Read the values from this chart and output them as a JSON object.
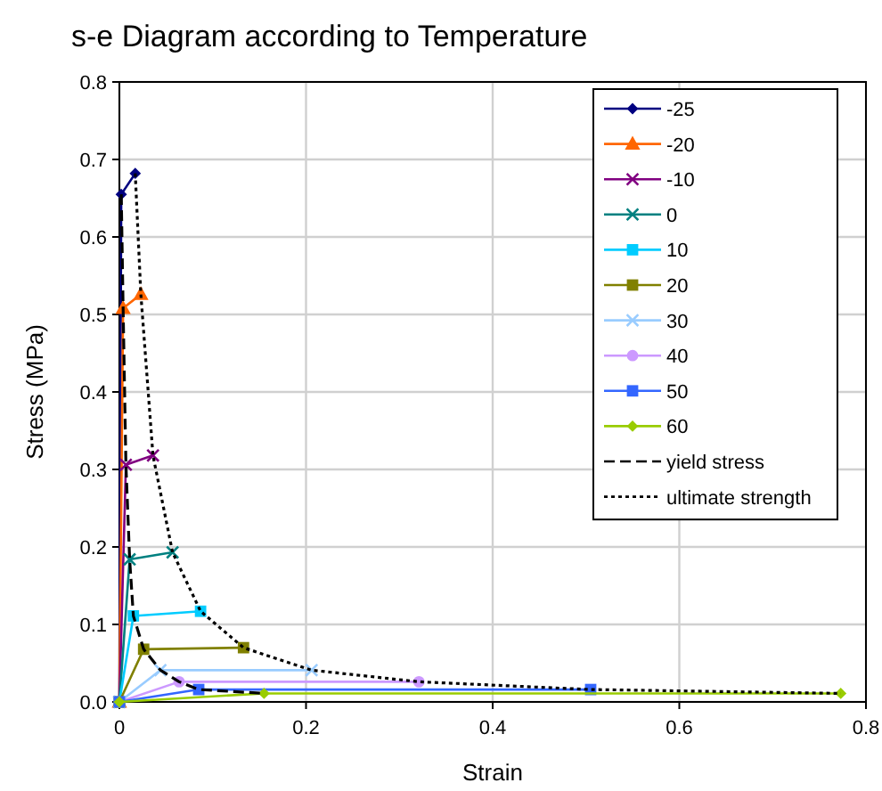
{
  "chart_data": {
    "type": "line",
    "title": "s-e Diagram according to Temperature",
    "xlabel": "Strain",
    "ylabel": "Stress (MPa)",
    "xlim": [
      0,
      0.8
    ],
    "xticks": [
      0,
      0.2,
      0.4,
      0.6,
      0.8
    ],
    "ylim": [
      0,
      0.8
    ],
    "yticks": [
      {
        "value": 0,
        "label": "0.0"
      },
      0.1,
      0.2,
      0.3,
      0.4,
      0.5,
      0.6,
      0.7,
      0.8
    ],
    "grid": true,
    "legend": "top right",
    "series": [
      {
        "name": "-25",
        "color": "#000080",
        "marker": "diamond",
        "x": [
          0,
          0.002,
          0.017
        ],
        "values": [
          0,
          0.655,
          0.682
        ]
      },
      {
        "name": "-20",
        "color": "#ff6600",
        "marker": "triangle",
        "x": [
          0,
          0.004,
          0.023
        ],
        "values": [
          0,
          0.508,
          0.526
        ]
      },
      {
        "name": "-10",
        "color": "#800080",
        "marker": "cross",
        "x": [
          0,
          0.007,
          0.036
        ],
        "values": [
          0,
          0.306,
          0.318
        ]
      },
      {
        "name": "0",
        "color": "#008080",
        "marker": "cross",
        "x": [
          0,
          0.011,
          0.057
        ],
        "values": [
          0,
          0.184,
          0.193
        ]
      },
      {
        "name": "10",
        "color": "#00ccff",
        "marker": "square",
        "x": [
          0,
          0.015,
          0.087
        ],
        "values": [
          0,
          0.111,
          0.117
        ]
      },
      {
        "name": "20",
        "color": "#808000",
        "marker": "square",
        "x": [
          0,
          0.026,
          0.133
        ],
        "values": [
          0,
          0.068,
          0.07
        ]
      },
      {
        "name": "30",
        "color": "#99ccff",
        "marker": "cross",
        "x": [
          0,
          0.044,
          0.206
        ],
        "values": [
          0,
          0.041,
          0.041
        ]
      },
      {
        "name": "40",
        "color": "#cc99ff",
        "marker": "circle",
        "x": [
          0,
          0.064,
          0.321
        ],
        "values": [
          0,
          0.026,
          0.026
        ]
      },
      {
        "name": "50",
        "color": "#3366ff",
        "marker": "square",
        "x": [
          0,
          0.085,
          0.505
        ],
        "values": [
          0,
          0.016,
          0.016
        ]
      },
      {
        "name": "60",
        "color": "#99cc00",
        "marker": "diamond",
        "x": [
          0,
          0.155,
          0.773
        ],
        "values": [
          0,
          0.011,
          0.011
        ]
      },
      {
        "name": "yield stress",
        "color": "#000000",
        "marker": "none",
        "line_style": "dashed",
        "x": [
          0.002,
          0.004,
          0.007,
          0.011,
          0.015,
          0.026,
          0.044,
          0.064,
          0.085,
          0.155
        ],
        "values": [
          0.655,
          0.508,
          0.306,
          0.184,
          0.111,
          0.068,
          0.041,
          0.026,
          0.016,
          0.011
        ]
      },
      {
        "name": "ultimate strength",
        "color": "#000000",
        "marker": "none",
        "line_style": "dotted",
        "x": [
          0.017,
          0.023,
          0.036,
          0.057,
          0.087,
          0.133,
          0.206,
          0.321,
          0.505,
          0.773
        ],
        "values": [
          0.682,
          0.526,
          0.318,
          0.193,
          0.117,
          0.07,
          0.041,
          0.026,
          0.016,
          0.011
        ]
      }
    ]
  }
}
